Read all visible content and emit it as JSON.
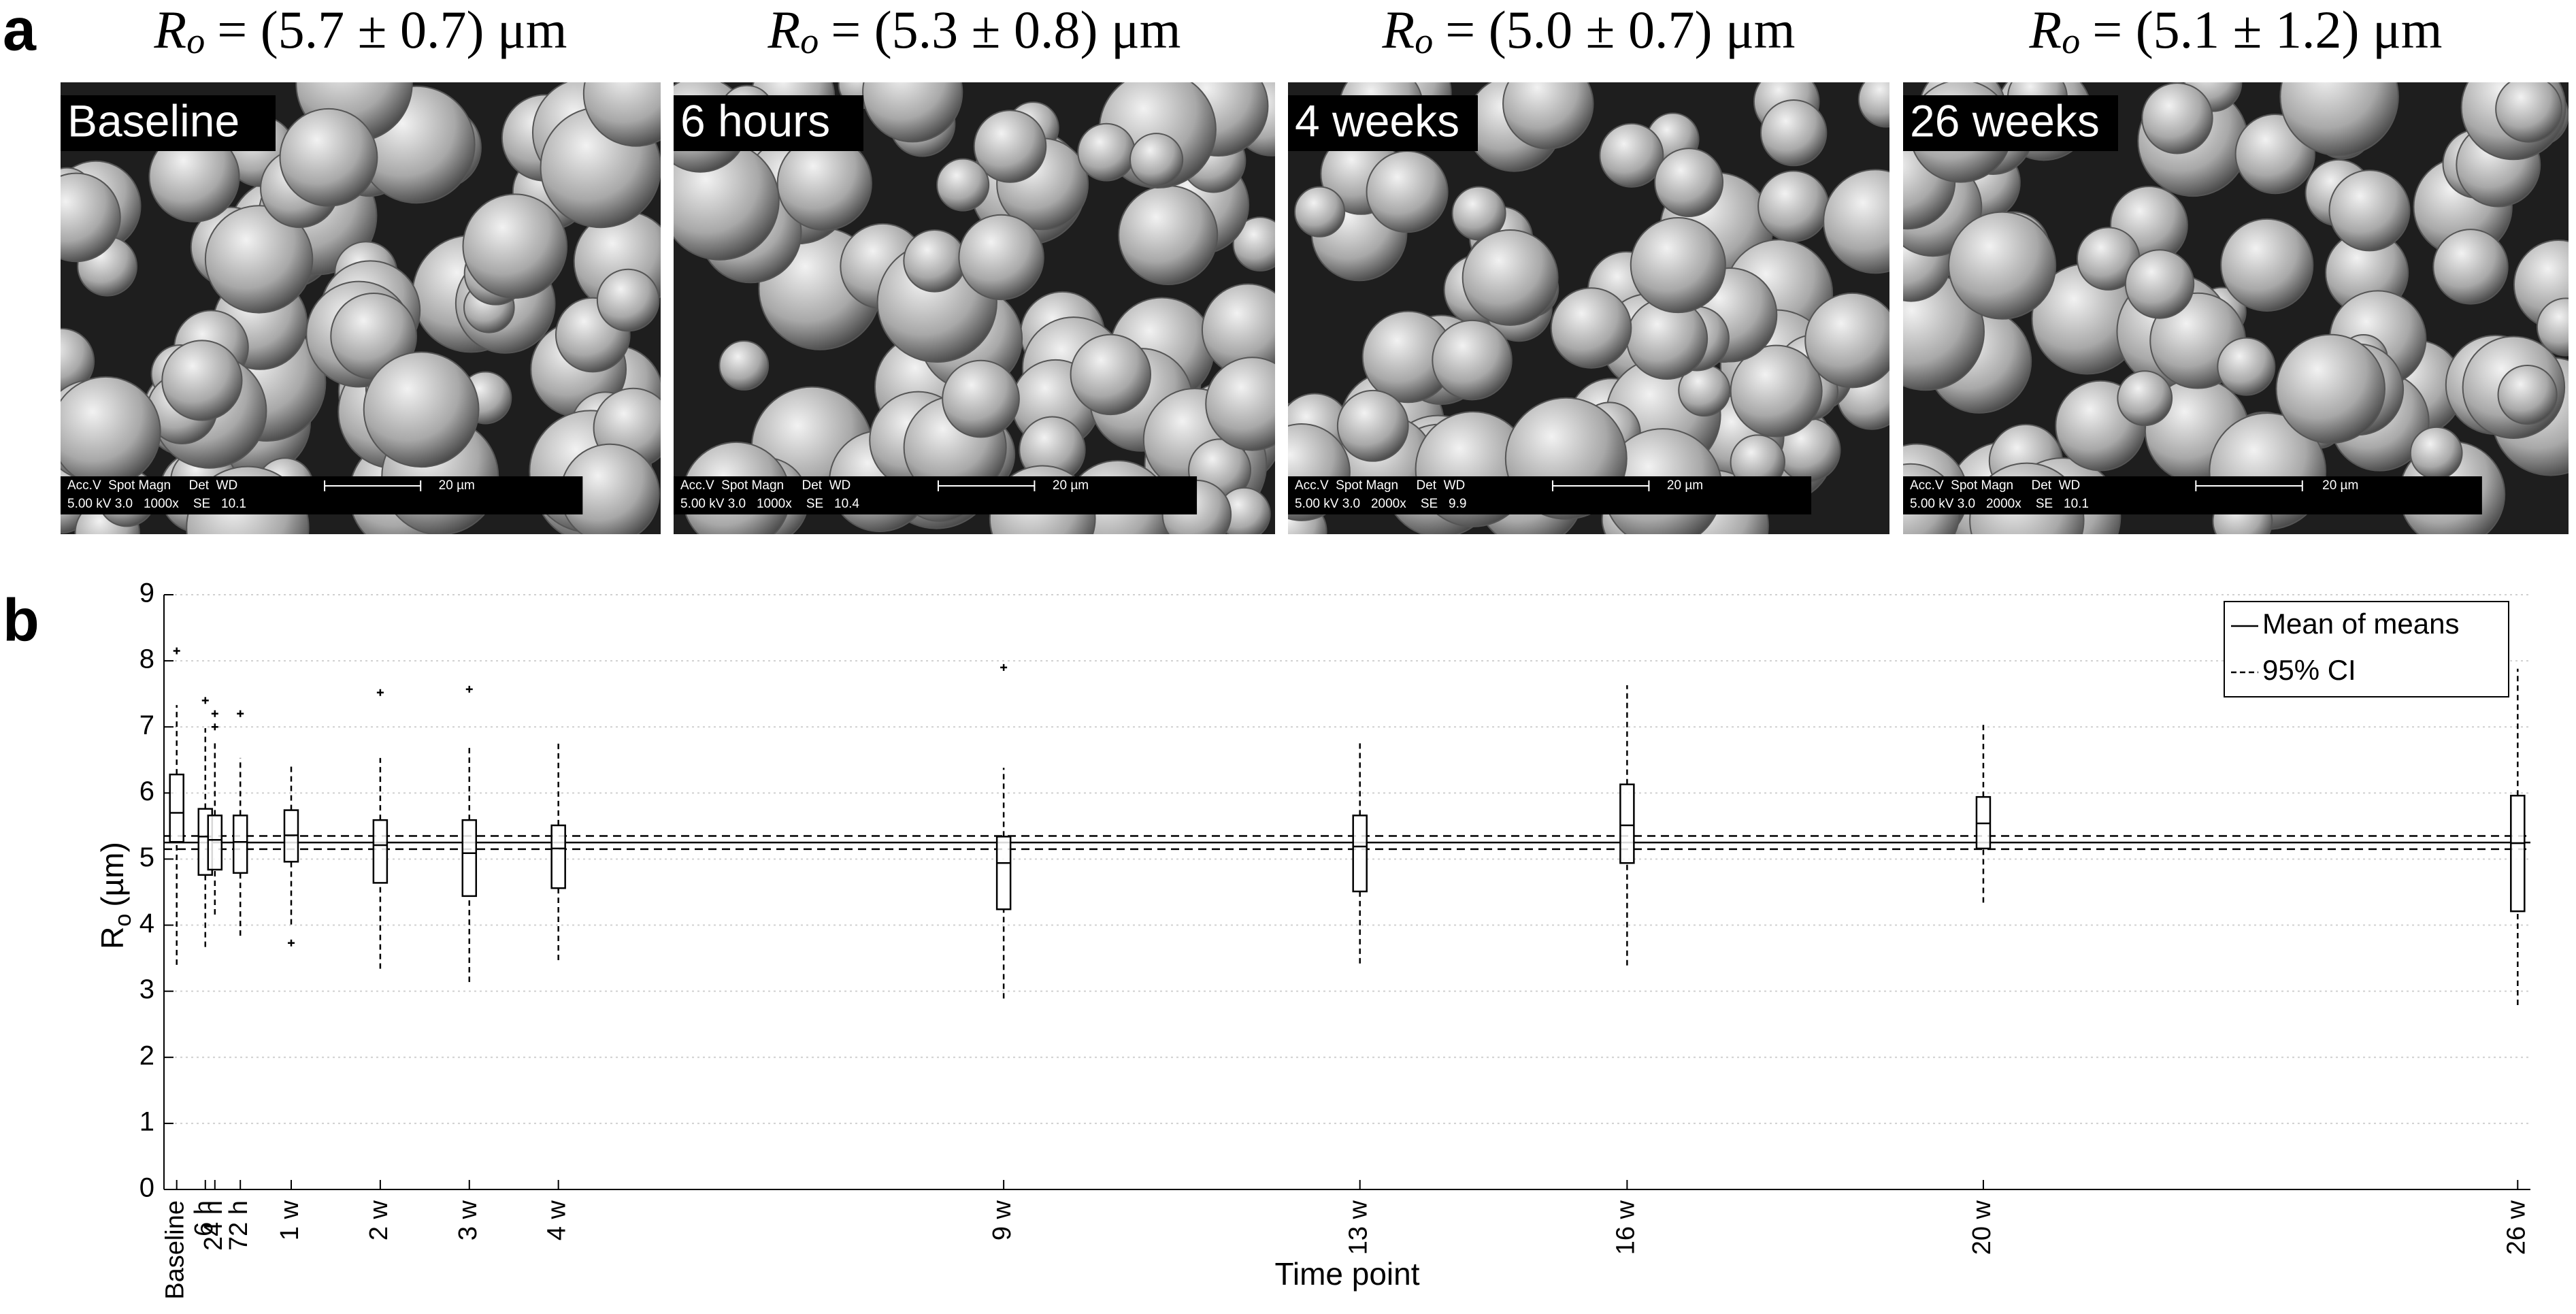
{
  "panel_a": {
    "label": "a",
    "images": [
      {
        "title": {
          "symbol": "R",
          "subscript": "o",
          "rest": "= (5.7 ± 0.7) μm"
        },
        "label": "Baseline",
        "info_header": "Acc.V  Spot Magn     Det  WD",
        "scale_bar": "20 µm",
        "info": "5.00 kV 3.0   1000x    SE   10.1"
      },
      {
        "title": {
          "symbol": "R",
          "subscript": "o",
          "rest": "= (5.3 ± 0.8) μm"
        },
        "label": "6 hours",
        "info_header": "Acc.V  Spot Magn     Det  WD",
        "scale_bar": "20 µm",
        "info": "5.00 kV 3.0   1000x    SE   10.4"
      },
      {
        "title": {
          "symbol": "R",
          "subscript": "o",
          "rest": "= (5.0 ± 0.7) μm"
        },
        "label": "4 weeks",
        "info_header": "Acc.V  Spot Magn     Det  WD",
        "scale_bar": "20 µm",
        "info": "5.00 kV 3.0   2000x    SE   9.9"
      },
      {
        "title": {
          "symbol": "R",
          "subscript": "o",
          "rest": "= (5.1 ± 1.2) μm"
        },
        "label": "26 weeks",
        "info_header": "Acc.V  Spot Magn     Det  WD",
        "scale_bar": "20 µm",
        "info": "5.00 kV 3.0   2000x    SE   10.1"
      }
    ]
  },
  "panel_b": {
    "label": "b"
  },
  "chart_data": {
    "type": "box",
    "xlabel": "Time point",
    "ylabel": {
      "symbol": "R",
      "subscript": "o",
      "unit": "(µm)"
    },
    "xlim": [
      -3,
      183
    ],
    "ylim": [
      0,
      9
    ],
    "yticks": [
      0,
      1,
      2,
      3,
      4,
      5,
      6,
      7,
      8,
      9
    ],
    "xticks": [
      {
        "value": -2,
        "label": "Baseline"
      },
      {
        "value": 0.25,
        "label": "6 h"
      },
      {
        "value": 1,
        "label": "24 h"
      },
      {
        "value": 3,
        "label": "72 h"
      },
      {
        "value": 7,
        "label": "1 w"
      },
      {
        "value": 14,
        "label": "2 w"
      },
      {
        "value": 21,
        "label": "3 w"
      },
      {
        "value": 28,
        "label": "4 w"
      },
      {
        "value": 63,
        "label": "9 w"
      },
      {
        "value": 91,
        "label": "13 w"
      },
      {
        "value": 112,
        "label": "16 w"
      },
      {
        "value": 140,
        "label": "20 w"
      },
      {
        "value": 182,
        "label": "26 w"
      }
    ],
    "boxes": [
      {
        "x": -2,
        "whislo": 3.4,
        "q1": 5.26,
        "med": 5.7,
        "q3": 6.28,
        "whishi": 7.33,
        "fliers": [
          8.15
        ]
      },
      {
        "x": 0.25,
        "whislo": 3.67,
        "q1": 4.76,
        "med": 5.34,
        "q3": 5.76,
        "whishi": 6.98,
        "fliers": [
          7.4
        ]
      },
      {
        "x": 1,
        "whislo": 4.16,
        "q1": 4.84,
        "med": 5.29,
        "q3": 5.66,
        "whishi": 6.8,
        "fliers": [
          7.2,
          7.0
        ]
      },
      {
        "x": 3,
        "whislo": 3.84,
        "q1": 4.79,
        "med": 5.26,
        "q3": 5.66,
        "whishi": 6.53,
        "fliers": [
          7.2
        ]
      },
      {
        "x": 7,
        "whislo": 4.01,
        "q1": 4.96,
        "med": 5.36,
        "q3": 5.74,
        "whishi": 6.43,
        "fliers": [
          3.73
        ]
      },
      {
        "x": 14,
        "whislo": 3.34,
        "q1": 4.64,
        "med": 5.21,
        "q3": 5.59,
        "whishi": 6.53,
        "fliers": [
          7.52
        ]
      },
      {
        "x": 21,
        "whislo": 3.14,
        "q1": 4.44,
        "med": 5.09,
        "q3": 5.59,
        "whishi": 6.71,
        "fliers": [
          7.57
        ]
      },
      {
        "x": 28,
        "whislo": 3.47,
        "q1": 4.56,
        "med": 5.16,
        "q3": 5.51,
        "whishi": 6.76,
        "fliers": []
      },
      {
        "x": 63,
        "whislo": 2.89,
        "q1": 4.24,
        "med": 4.94,
        "q3": 5.34,
        "whishi": 6.38,
        "fliers": [
          7.9
        ]
      },
      {
        "x": 91,
        "whislo": 3.42,
        "q1": 4.51,
        "med": 5.19,
        "q3": 5.66,
        "whishi": 6.76,
        "fliers": []
      },
      {
        "x": 112,
        "whislo": 3.39,
        "q1": 4.94,
        "med": 5.51,
        "q3": 6.13,
        "whishi": 7.63,
        "fliers": []
      },
      {
        "x": 140,
        "whislo": 4.34,
        "q1": 5.16,
        "med": 5.54,
        "q3": 5.94,
        "whishi": 7.03,
        "fliers": []
      },
      {
        "x": 182,
        "whislo": 2.79,
        "q1": 4.21,
        "med": 5.24,
        "q3": 5.96,
        "whishi": 7.88,
        "fliers": []
      }
    ],
    "hlines": [
      {
        "name": "Mean of means",
        "values": [
          5.25
        ],
        "style": "solid"
      },
      {
        "name": "95% CI",
        "values": [
          5.15,
          5.35
        ],
        "style": "dashed"
      }
    ],
    "color": "#000000",
    "grid": true,
    "legend": "upper right"
  }
}
